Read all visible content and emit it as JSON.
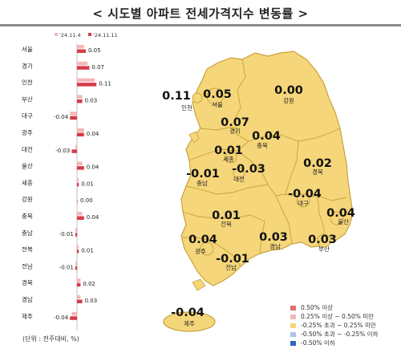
{
  "title": "< 시도별 아파트 전세가격지수 변동률 >",
  "unit_note": "(단위 : 전주대비, %)",
  "chart_data": [
    {
      "type": "bar",
      "orientation": "horizontal",
      "legend_position": "top",
      "categories": [
        "서울",
        "경기",
        "인천",
        "부산",
        "대구",
        "광주",
        "대전",
        "울산",
        "세종",
        "강원",
        "충북",
        "충남",
        "전북",
        "전남",
        "경북",
        "경남",
        "제주"
      ],
      "series": [
        {
          "name": "'24.11.4",
          "color": "#f4b6b6",
          "values": [
            0.04,
            0.06,
            0.1,
            0.03,
            -0.04,
            0.04,
            -0.01,
            0.03,
            0.01,
            0.0,
            0.03,
            -0.01,
            0.01,
            -0.01,
            0.02,
            0.02,
            -0.03
          ]
        },
        {
          "name": "'24.11.11",
          "color": "#d63c4a",
          "values": [
            0.05,
            0.07,
            0.11,
            0.03,
            -0.04,
            0.04,
            -0.03,
            0.04,
            0.01,
            0.0,
            0.04,
            -0.01,
            0.01,
            -0.01,
            0.02,
            0.03,
            -0.04
          ]
        }
      ],
      "value_labels": [
        "0.05",
        "0.07",
        "0.11",
        "0.03",
        "-0.04",
        "0.04",
        "-0.03",
        "0.04",
        "0.01",
        "0.00",
        "0.04",
        "-0.01",
        "0.01",
        "-0.01",
        "0.02",
        "0.03",
        "-0.04"
      ]
    },
    {
      "type": "choropleth",
      "regions": [
        {
          "name": "인천",
          "value": "0.11"
        },
        {
          "name": "서울",
          "value": "0.05"
        },
        {
          "name": "강원",
          "value": "0.00"
        },
        {
          "name": "경기",
          "value": "0.07"
        },
        {
          "name": "충북",
          "value": "0.04"
        },
        {
          "name": "세종",
          "value": "0.01"
        },
        {
          "name": "대전",
          "value": "-0.03"
        },
        {
          "name": "충남",
          "value": "-0.01"
        },
        {
          "name": "경북",
          "value": "0.02"
        },
        {
          "name": "대구",
          "value": "-0.04"
        },
        {
          "name": "울산",
          "value": "0.04"
        },
        {
          "name": "전북",
          "value": "0.01"
        },
        {
          "name": "광주",
          "value": "0.04"
        },
        {
          "name": "전남",
          "value": "-0.01"
        },
        {
          "name": "경남",
          "value": "0.03"
        },
        {
          "name": "부산",
          "value": "0.03"
        },
        {
          "name": "제주",
          "value": "-0.04"
        }
      ],
      "legend": [
        {
          "label": "0.50% 이상",
          "color": "#d8736f"
        },
        {
          "label": "0.25% 이상 ~ 0.50% 미만",
          "color": "#f2b9b3"
        },
        {
          "label": "-0.25% 초과 ~ 0.25% 미만",
          "color": "#f5d67a"
        },
        {
          "label": "-0.50% 초과 ~ -0.25% 이하",
          "color": "#a9c4e8"
        },
        {
          "label": "-0.50% 이하",
          "color": "#2f66c4"
        }
      ],
      "fill_color": "#f5d67a",
      "border_color": "#c8a23a"
    }
  ]
}
